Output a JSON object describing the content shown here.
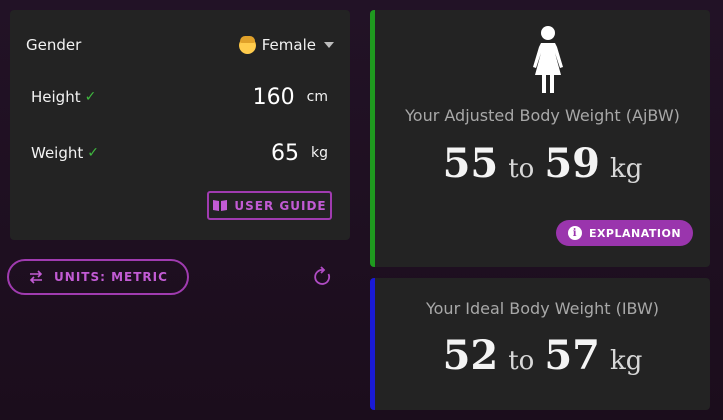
{
  "form": {
    "gender_label": "Gender",
    "gender_value": "Female",
    "height_label": "Height",
    "height_value": "160",
    "height_unit": "cm",
    "weight_label": "Weight",
    "weight_value": "65",
    "weight_unit": "kg",
    "check_mark": "✓",
    "guide_button": "USER GUIDE"
  },
  "controls": {
    "units_button": "UNITS: METRIC"
  },
  "ajbw": {
    "label": "Your Adjusted Body Weight (AjBW)",
    "low": "55",
    "to": "to",
    "high": "59",
    "unit": "kg",
    "explain_button": "EXPLANATION",
    "accent": "#1f9a1f"
  },
  "ibw": {
    "label": "Your Ideal Body Weight (IBW)",
    "low": "52",
    "to": "to",
    "high": "57",
    "unit": "kg",
    "accent": "#1a1ad6"
  },
  "theme": {
    "brand": "#a03bb0",
    "card": "#232323"
  },
  "icons": [
    "woman-emoji-icon",
    "caret-down-icon",
    "book-icon",
    "swap-icon",
    "refresh-icon",
    "woman-figure-icon",
    "info-icon"
  ]
}
